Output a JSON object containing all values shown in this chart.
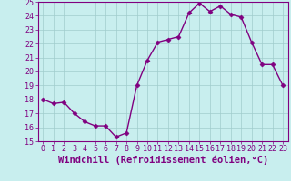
{
  "x": [
    0,
    1,
    2,
    3,
    4,
    5,
    6,
    7,
    8,
    9,
    10,
    11,
    12,
    13,
    14,
    15,
    16,
    17,
    18,
    19,
    20,
    21,
    22,
    23
  ],
  "y": [
    18.0,
    17.7,
    17.8,
    17.0,
    16.4,
    16.1,
    16.1,
    15.3,
    15.6,
    19.0,
    20.8,
    22.1,
    22.3,
    22.5,
    24.2,
    24.9,
    24.3,
    24.7,
    24.1,
    23.9,
    22.1,
    20.5,
    20.5,
    19.0
  ],
  "line_color": "#800080",
  "marker": "D",
  "marker_size": 2.5,
  "background_color": "#c8eeee",
  "grid_color": "#a0cccc",
  "xlabel": "Windchill (Refroidissement éolien,°C)",
  "xlabel_fontsize": 7.5,
  "ylim": [
    15,
    25
  ],
  "xlim": [
    -0.5,
    23.5
  ],
  "yticks": [
    15,
    16,
    17,
    18,
    19,
    20,
    21,
    22,
    23,
    24,
    25
  ],
  "xticks": [
    0,
    1,
    2,
    3,
    4,
    5,
    6,
    7,
    8,
    9,
    10,
    11,
    12,
    13,
    14,
    15,
    16,
    17,
    18,
    19,
    20,
    21,
    22,
    23
  ],
  "tick_fontsize": 6,
  "line_width": 1.0
}
